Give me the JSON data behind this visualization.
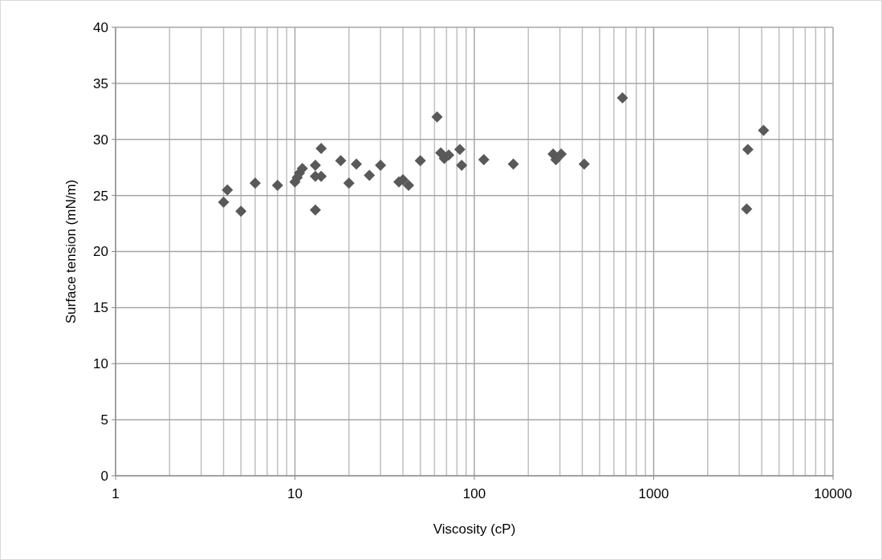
{
  "chart_data": {
    "type": "scatter",
    "xlabel": "Viscosity (cP)",
    "ylabel": "Surface tension (mN/m)",
    "log": "x",
    "grid": true,
    "marker": "diamond",
    "xlim": [
      1,
      10000
    ],
    "xticks": [
      1,
      10,
      100,
      1000,
      10000
    ],
    "ylim": [
      0,
      40
    ],
    "yticks": [
      0,
      5,
      10,
      15,
      20,
      25,
      30,
      35,
      40
    ],
    "series": [
      {
        "color": "#595959",
        "x": [
          4,
          4.2,
          5,
          6,
          8,
          10,
          10.3,
          10.6,
          11,
          13,
          13,
          13,
          14,
          14,
          18,
          20,
          22,
          26,
          30,
          38,
          40,
          43,
          50,
          62,
          65,
          68,
          72,
          83,
          85,
          113,
          165,
          275,
          285,
          305,
          410,
          670,
          3300,
          3350,
          4100
        ],
        "values": [
          24.4,
          25.5,
          23.6,
          26.1,
          25.9,
          26.2,
          26.6,
          27.0,
          27.4,
          27.7,
          26.7,
          23.7,
          29.2,
          26.7,
          28.1,
          26.1,
          27.8,
          26.8,
          27.7,
          26.2,
          26.4,
          25.9,
          28.1,
          32,
          28.8,
          28.3,
          28.6,
          29.1,
          27.7,
          28.2,
          27.8,
          28.7,
          28.2,
          28.7,
          27.8,
          33.7,
          23.8,
          29.1,
          30.8
        ]
      }
    ]
  }
}
